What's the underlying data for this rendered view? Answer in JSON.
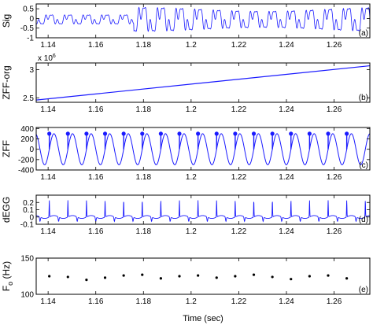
{
  "chart_data": [
    {
      "type": "line",
      "ylabel": "Sig",
      "panel_label": "(a)",
      "xlim": [
        1.135,
        1.275
      ],
      "ylim": [
        -1,
        0.75
      ],
      "xticks": [
        "1.14",
        "1.16",
        "1.18",
        "1.2",
        "1.22",
        "1.24",
        "1.26"
      ],
      "yticks": [
        "-1",
        "-0.5",
        "0",
        "0.5"
      ],
      "color": "#1a1aff",
      "series": [
        {
          "signal": "speech waveform; low amplitude (~±0.25) before x≈1.176, higher amplitude (~±0.7) after, roughly 7 ms pitch period"
        }
      ]
    },
    {
      "type": "line",
      "ylabel": "ZFF-org",
      "panel_label": "(b)",
      "exponent_label": "x 10^6",
      "xlim": [
        1.135,
        1.275
      ],
      "ylim": [
        2.42,
        3.12
      ],
      "xticks": [
        "1.14",
        "1.16",
        "1.18",
        "1.2",
        "1.22",
        "1.24",
        "1.26"
      ],
      "yticks": [
        "2.5",
        "3"
      ],
      "color": "#1a1aff",
      "series": [
        {
          "x": [
            1.135,
            1.275
          ],
          "y": [
            2.46,
            3.07
          ]
        }
      ]
    },
    {
      "type": "line",
      "ylabel": "ZFF",
      "panel_label": "(c)",
      "xlim": [
        1.135,
        1.275
      ],
      "ylim": [
        -400,
        420
      ],
      "xticks": [
        "1.14",
        "1.16",
        "1.18",
        "1.2",
        "1.22",
        "1.24",
        "1.26"
      ],
      "yticks": [
        "-400",
        "-200",
        "0",
        "200",
        "400"
      ],
      "color": "#1a1aff",
      "series": [
        {
          "signal": "sinusoid, amplitude ~300, period ~0.0078 s"
        }
      ],
      "epochs": [
        1.1405,
        1.1483,
        1.1561,
        1.1639,
        1.1717,
        1.1795,
        1.1873,
        1.1951,
        1.2029,
        1.2107,
        1.2185,
        1.2263,
        1.2341,
        1.2419,
        1.2497,
        1.2575,
        1.2653
      ],
      "epoch_height": 300
    },
    {
      "type": "line",
      "ylabel": "dEGG",
      "panel_label": "(d)",
      "xlim": [
        1.135,
        1.275
      ],
      "ylim": [
        -0.1,
        0.3
      ],
      "xticks": [
        "1.14",
        "1.16",
        "1.18",
        "1.2",
        "1.22",
        "1.24",
        "1.26"
      ],
      "yticks": [
        "-0.1",
        "0",
        "0.1",
        "0.2"
      ],
      "color": "#1a1aff",
      "series": [
        {
          "signal": "differenced EGG: sharp positive spikes ~0.2-0.25 at each glottal closure, small negative dips"
        }
      ],
      "spikes": [
        1.1405,
        1.1483,
        1.1561,
        1.1639,
        1.1717,
        1.1795,
        1.1873,
        1.1951,
        1.2029,
        1.2107,
        1.2185,
        1.2263,
        1.2341,
        1.2419,
        1.2497,
        1.2575,
        1.2653
      ]
    },
    {
      "type": "scatter",
      "ylabel": "F_o (Hz)",
      "panel_label": "(e)",
      "xlim": [
        1.135,
        1.275
      ],
      "ylim": [
        100,
        150
      ],
      "xticks": [
        "1.14",
        "1.16",
        "1.18",
        "1.2",
        "1.22",
        "1.24",
        "1.26"
      ],
      "yticks": [
        "100",
        "150"
      ],
      "xlabel": "Time (sec)",
      "color": "#000000",
      "points": {
        "x": [
          1.1405,
          1.1483,
          1.1561,
          1.1639,
          1.1717,
          1.1795,
          1.1873,
          1.1951,
          1.2029,
          1.2107,
          1.2185,
          1.2263,
          1.2341,
          1.2419,
          1.2497,
          1.2575,
          1.2653
        ],
        "y": [
          125,
          124,
          120,
          123,
          126,
          127,
          122,
          125,
          126,
          123,
          125,
          127,
          124,
          121,
          125,
          126,
          122
        ]
      }
    }
  ]
}
